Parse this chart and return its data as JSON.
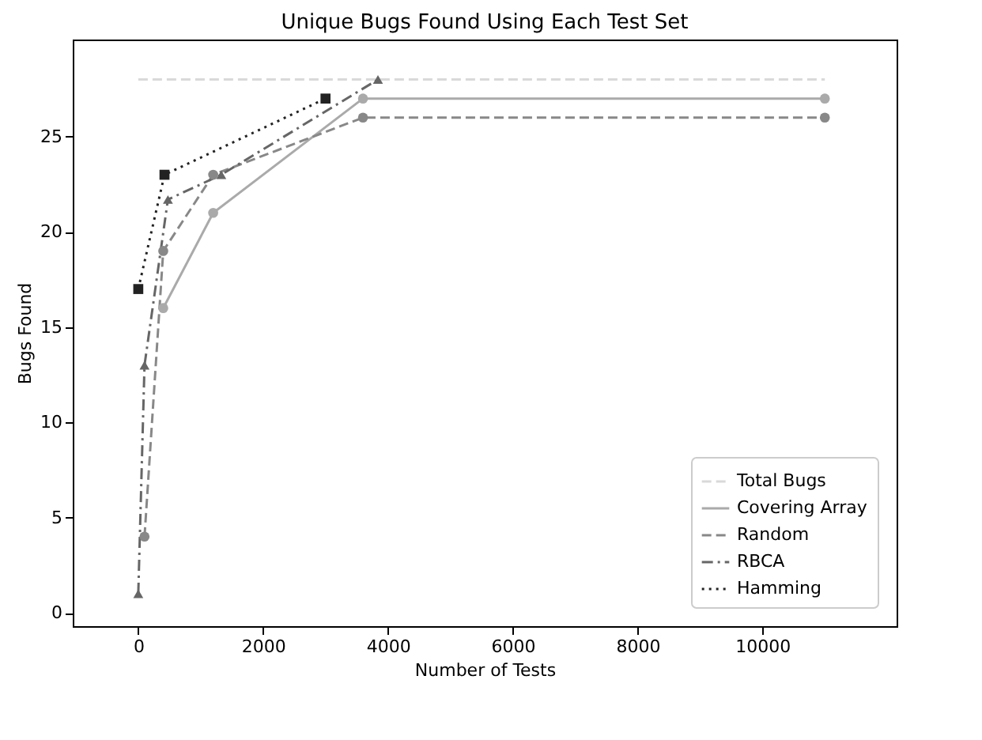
{
  "chart_data": {
    "type": "line",
    "title": "Unique Bugs Found Using Each Test Set",
    "xlabel": "Number of Tests",
    "ylabel": "Bugs Found",
    "xlim": [
      -1050,
      12150
    ],
    "xticks": [
      0,
      2000,
      4000,
      6000,
      8000,
      10000
    ],
    "ylim": [
      -0.7,
      30.1
    ],
    "yticks": [
      0,
      5,
      10,
      15,
      20,
      25
    ],
    "grid": false,
    "legend": "bottom right",
    "series": [
      {
        "name": "Total Bugs",
        "color": "#d9d9d9",
        "x": [
          0,
          11000
        ],
        "values": [
          28,
          28
        ],
        "line_style": "dashed",
        "marker": "none"
      },
      {
        "name": "Covering Array",
        "color": "#aaaaaa",
        "x": [
          400,
          1200,
          3600,
          11000
        ],
        "values": [
          16,
          21,
          27,
          27
        ],
        "line_style": "solid",
        "marker": "circle"
      },
      {
        "name": "Random",
        "color": "#888888",
        "x": [
          100,
          400,
          1200,
          3600,
          11000
        ],
        "values": [
          4,
          19,
          23,
          26,
          26
        ],
        "line_style": "dashed",
        "marker": "circle"
      },
      {
        "name": "RBCA",
        "color": "#666666",
        "x": [
          0,
          100,
          475,
          1330,
          3840
        ],
        "values": [
          1,
          13,
          21.7,
          23,
          28
        ],
        "line_style": "dashdot",
        "marker": "triangle"
      },
      {
        "name": "Hamming",
        "color": "#222222",
        "x": [
          0,
          420,
          3000
        ],
        "values": [
          17,
          23,
          27
        ],
        "line_style": "dotted",
        "marker": "square"
      }
    ]
  }
}
